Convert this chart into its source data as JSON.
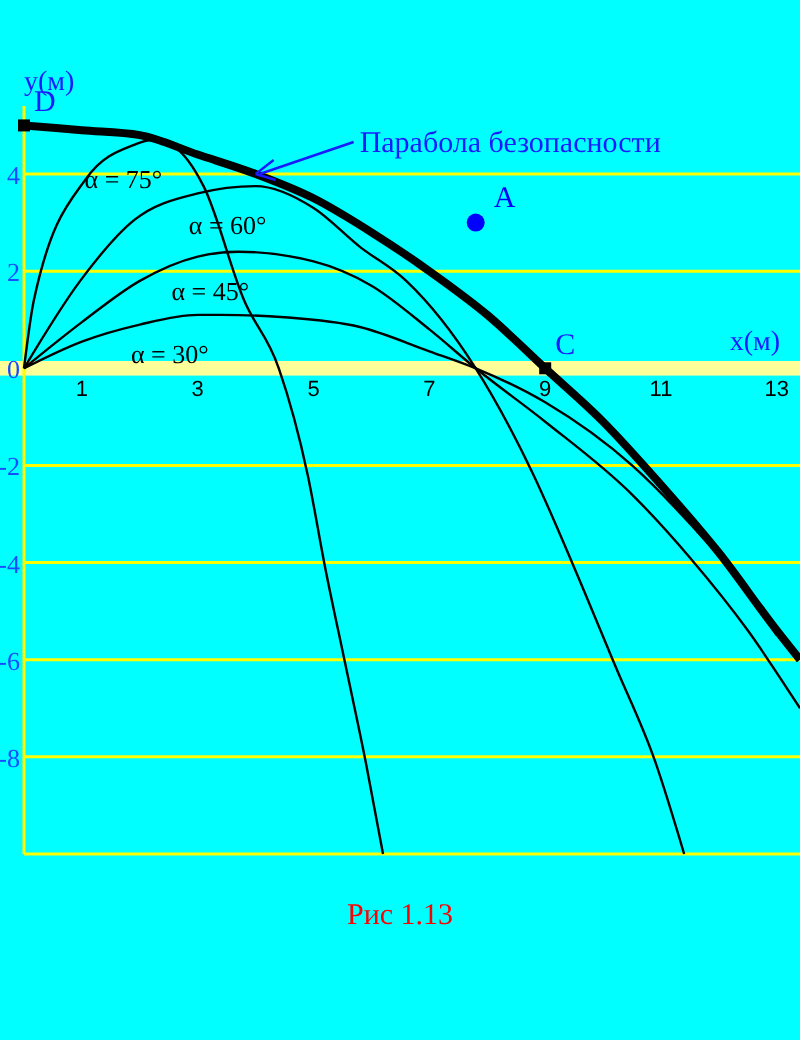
{
  "chart_data": {
    "type": "line",
    "xlabel": "x(м)",
    "ylabel": "y(м)",
    "xlim": [
      0,
      13.4
    ],
    "ylim": [
      -10,
      5.4
    ],
    "xticks": [
      1,
      3,
      5,
      7,
      9,
      11,
      13
    ],
    "yticks": [
      4,
      2,
      0,
      -2,
      -4,
      -6,
      -8,
      {
        "value": -10,
        "label": null
      }
    ],
    "grid": "y",
    "bands": [
      {
        "axis": "y",
        "from": -0.15,
        "to": 0.15,
        "color": "#ffff99"
      }
    ],
    "series": [
      {
        "color": "#000000",
        "x": [
          0,
          1,
          2,
          3,
          4,
          5,
          6,
          7,
          8,
          9,
          10,
          11,
          12,
          13,
          13.4
        ],
        "values": [
          5,
          4.9,
          4.8,
          4.4,
          4,
          3.5,
          2.8,
          2,
          1.1,
          0,
          -1.1,
          -2.4,
          -3.8,
          -5.4,
          -6
        ]
      },
      {
        "name": "α = 75°",
        "color": "#000000",
        "x": [
          0,
          0.17,
          1.07,
          1.9,
          2.2,
          2.6,
          3.1,
          3.8,
          4.4,
          4.9,
          5.2,
          5.55,
          5.9,
          6.2
        ],
        "values": [
          0,
          1.4,
          3.9,
          4.6,
          4.7,
          4.55,
          3.75,
          1.4,
          0,
          -2.2,
          -4.1,
          -6.1,
          -8.1,
          -10
        ]
      },
      {
        "name": "α = 60°",
        "color": "#000000",
        "x": [
          0,
          0.97,
          1.9,
          3,
          4,
          5,
          5.8,
          6.6,
          7.8,
          8.8,
          9.5,
          10.2,
          10.9,
          11.4
        ],
        "values": [
          0,
          1.8,
          3.05,
          3.6,
          3.75,
          3.3,
          2.5,
          1.8,
          0,
          -2.2,
          -4.1,
          -6.1,
          -8.1,
          -10
        ]
      },
      {
        "name": "α = 45°",
        "color": "#000000",
        "x": [
          0,
          1,
          2,
          3,
          3.7,
          5,
          6,
          7,
          7.8,
          9,
          10.5,
          11.5,
          12.5,
          13.4
        ],
        "values": [
          0,
          0.95,
          1.8,
          2.3,
          2.4,
          2.2,
          1.7,
          0.8,
          0,
          -1.1,
          -2.6,
          -3.9,
          -5.4,
          -7
        ]
      },
      {
        "name": "α = 30°",
        "color": "#000000",
        "x": [
          0,
          1,
          2,
          3,
          3.4,
          4.5,
          5.8,
          7,
          7.8,
          9,
          10.5,
          11.5,
          12.5,
          13
        ],
        "values": [
          0,
          0.55,
          0.9,
          1.1,
          1.1,
          1.05,
          0.85,
          0.35,
          0,
          -0.7,
          -2,
          -3.2,
          -4.6,
          -5.5
        ]
      },
      {
        "type": "scatter",
        "name": "A",
        "color": "#0000ff",
        "marker": "circle",
        "x": [
          7.8
        ],
        "values": [
          3
        ]
      },
      {
        "type": "scatter",
        "color": "#000000",
        "marker": "square",
        "x": [
          0
        ],
        "values": [
          5
        ]
      },
      {
        "type": "scatter",
        "color": "#000000",
        "marker": "square",
        "x": [
          9
        ],
        "values": [
          0
        ]
      }
    ],
    "annotations": [
      {
        "text": "Парабола безопасности",
        "x": 4,
        "y": 4
      },
      {
        "text": "D",
        "x": 0,
        "y": 5
      },
      {
        "text": "C",
        "x": 9,
        "y": 0
      },
      "Рис 1.13"
    ]
  }
}
